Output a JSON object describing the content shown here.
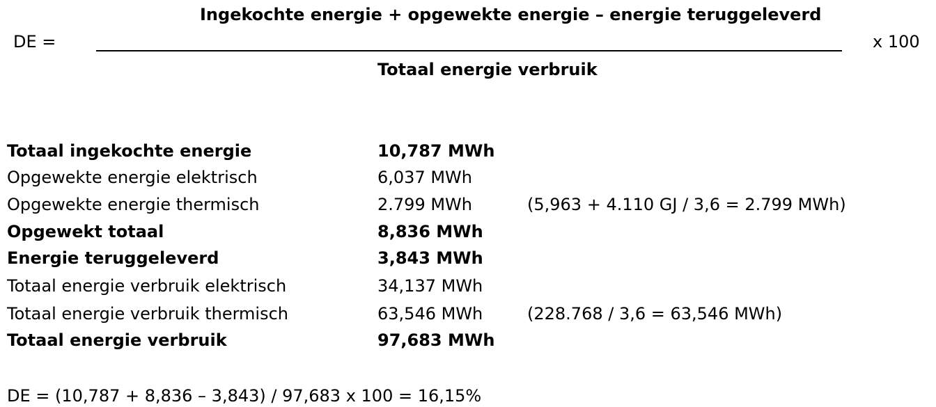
{
  "formula": {
    "lhs": "DE =",
    "numerator": "Ingekochte energie + opgewekte energie – energie teruggeleverd",
    "denominator": "Totaal energie verbruik",
    "multiplier": "x 100"
  },
  "rows": [
    {
      "label": "Totaal ingekochte energie",
      "value": "10,787 MWh",
      "note": "",
      "bold": true
    },
    {
      "label": "Opgewekte energie elektrisch",
      "value": "6,037 MWh",
      "note": "",
      "bold": false
    },
    {
      "label": "Opgewekte energie thermisch",
      "value": "2.799 MWh",
      "note": "(5,963 + 4.110 GJ / 3,6 = 2.799 MWh)",
      "bold": false
    },
    {
      "label": "Opgewekt totaal",
      "value": "8,836 MWh",
      "note": "",
      "bold": true
    },
    {
      "label": "Energie teruggeleverd",
      "value": "3,843 MWh",
      "note": "",
      "bold": true
    },
    {
      "label": "Totaal energie verbruik elektrisch",
      "value": "34,137 MWh",
      "note": "",
      "bold": false
    },
    {
      "label": "Totaal energie verbruik thermisch",
      "value": "63,546 MWh",
      "note": "(228.768 / 3,6 = 63,546 MWh)",
      "bold": false
    },
    {
      "label": "Totaal energie verbruik",
      "value": "97,683 MWh",
      "note": "",
      "bold": true
    }
  ],
  "result": "DE = (10,787 + 8,836 – 3,843) / 97,683 x 100 = 16,15%"
}
